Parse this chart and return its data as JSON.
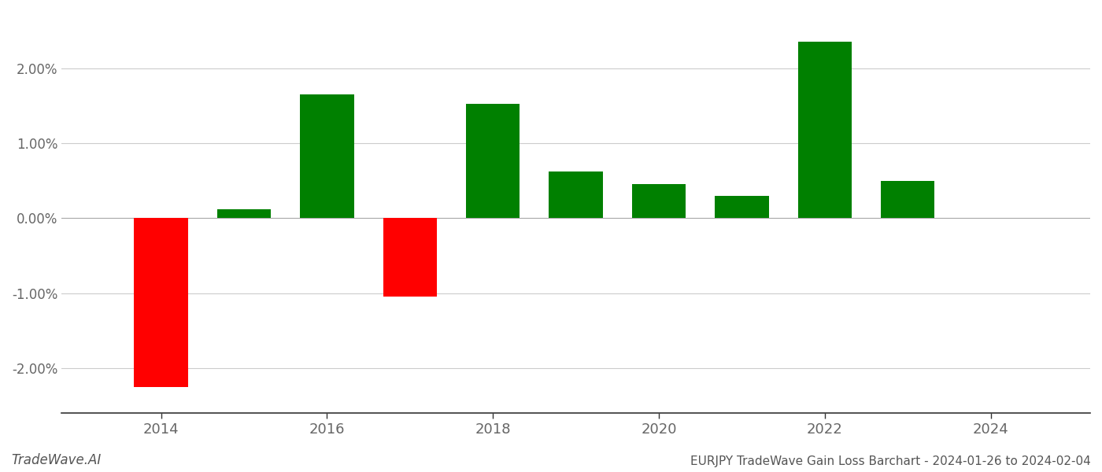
{
  "years": [
    2014,
    2015,
    2016,
    2017,
    2018,
    2019,
    2020,
    2021,
    2022,
    2023
  ],
  "values": [
    -2.25,
    0.12,
    1.65,
    -1.05,
    1.52,
    0.62,
    0.45,
    0.3,
    2.35,
    0.5
  ],
  "bar_colors": [
    "#ff0000",
    "#008000",
    "#008000",
    "#ff0000",
    "#008000",
    "#008000",
    "#008000",
    "#008000",
    "#008000",
    "#008000"
  ],
  "xlabel_ticks": [
    2014,
    2016,
    2018,
    2020,
    2022,
    2024
  ],
  "ylim": [
    -2.6,
    2.75
  ],
  "yticks": [
    -2.0,
    -1.0,
    0.0,
    1.0,
    2.0
  ],
  "title": "EURJPY TradeWave Gain Loss Barchart - 2024-01-26 to 2024-02-04",
  "watermark": "TradeWave.AI",
  "background_color": "#ffffff",
  "grid_color": "#cccccc",
  "bar_width": 0.65,
  "fig_width": 14.0,
  "fig_height": 6.0,
  "xlim_left": 2012.8,
  "xlim_right": 2025.2
}
